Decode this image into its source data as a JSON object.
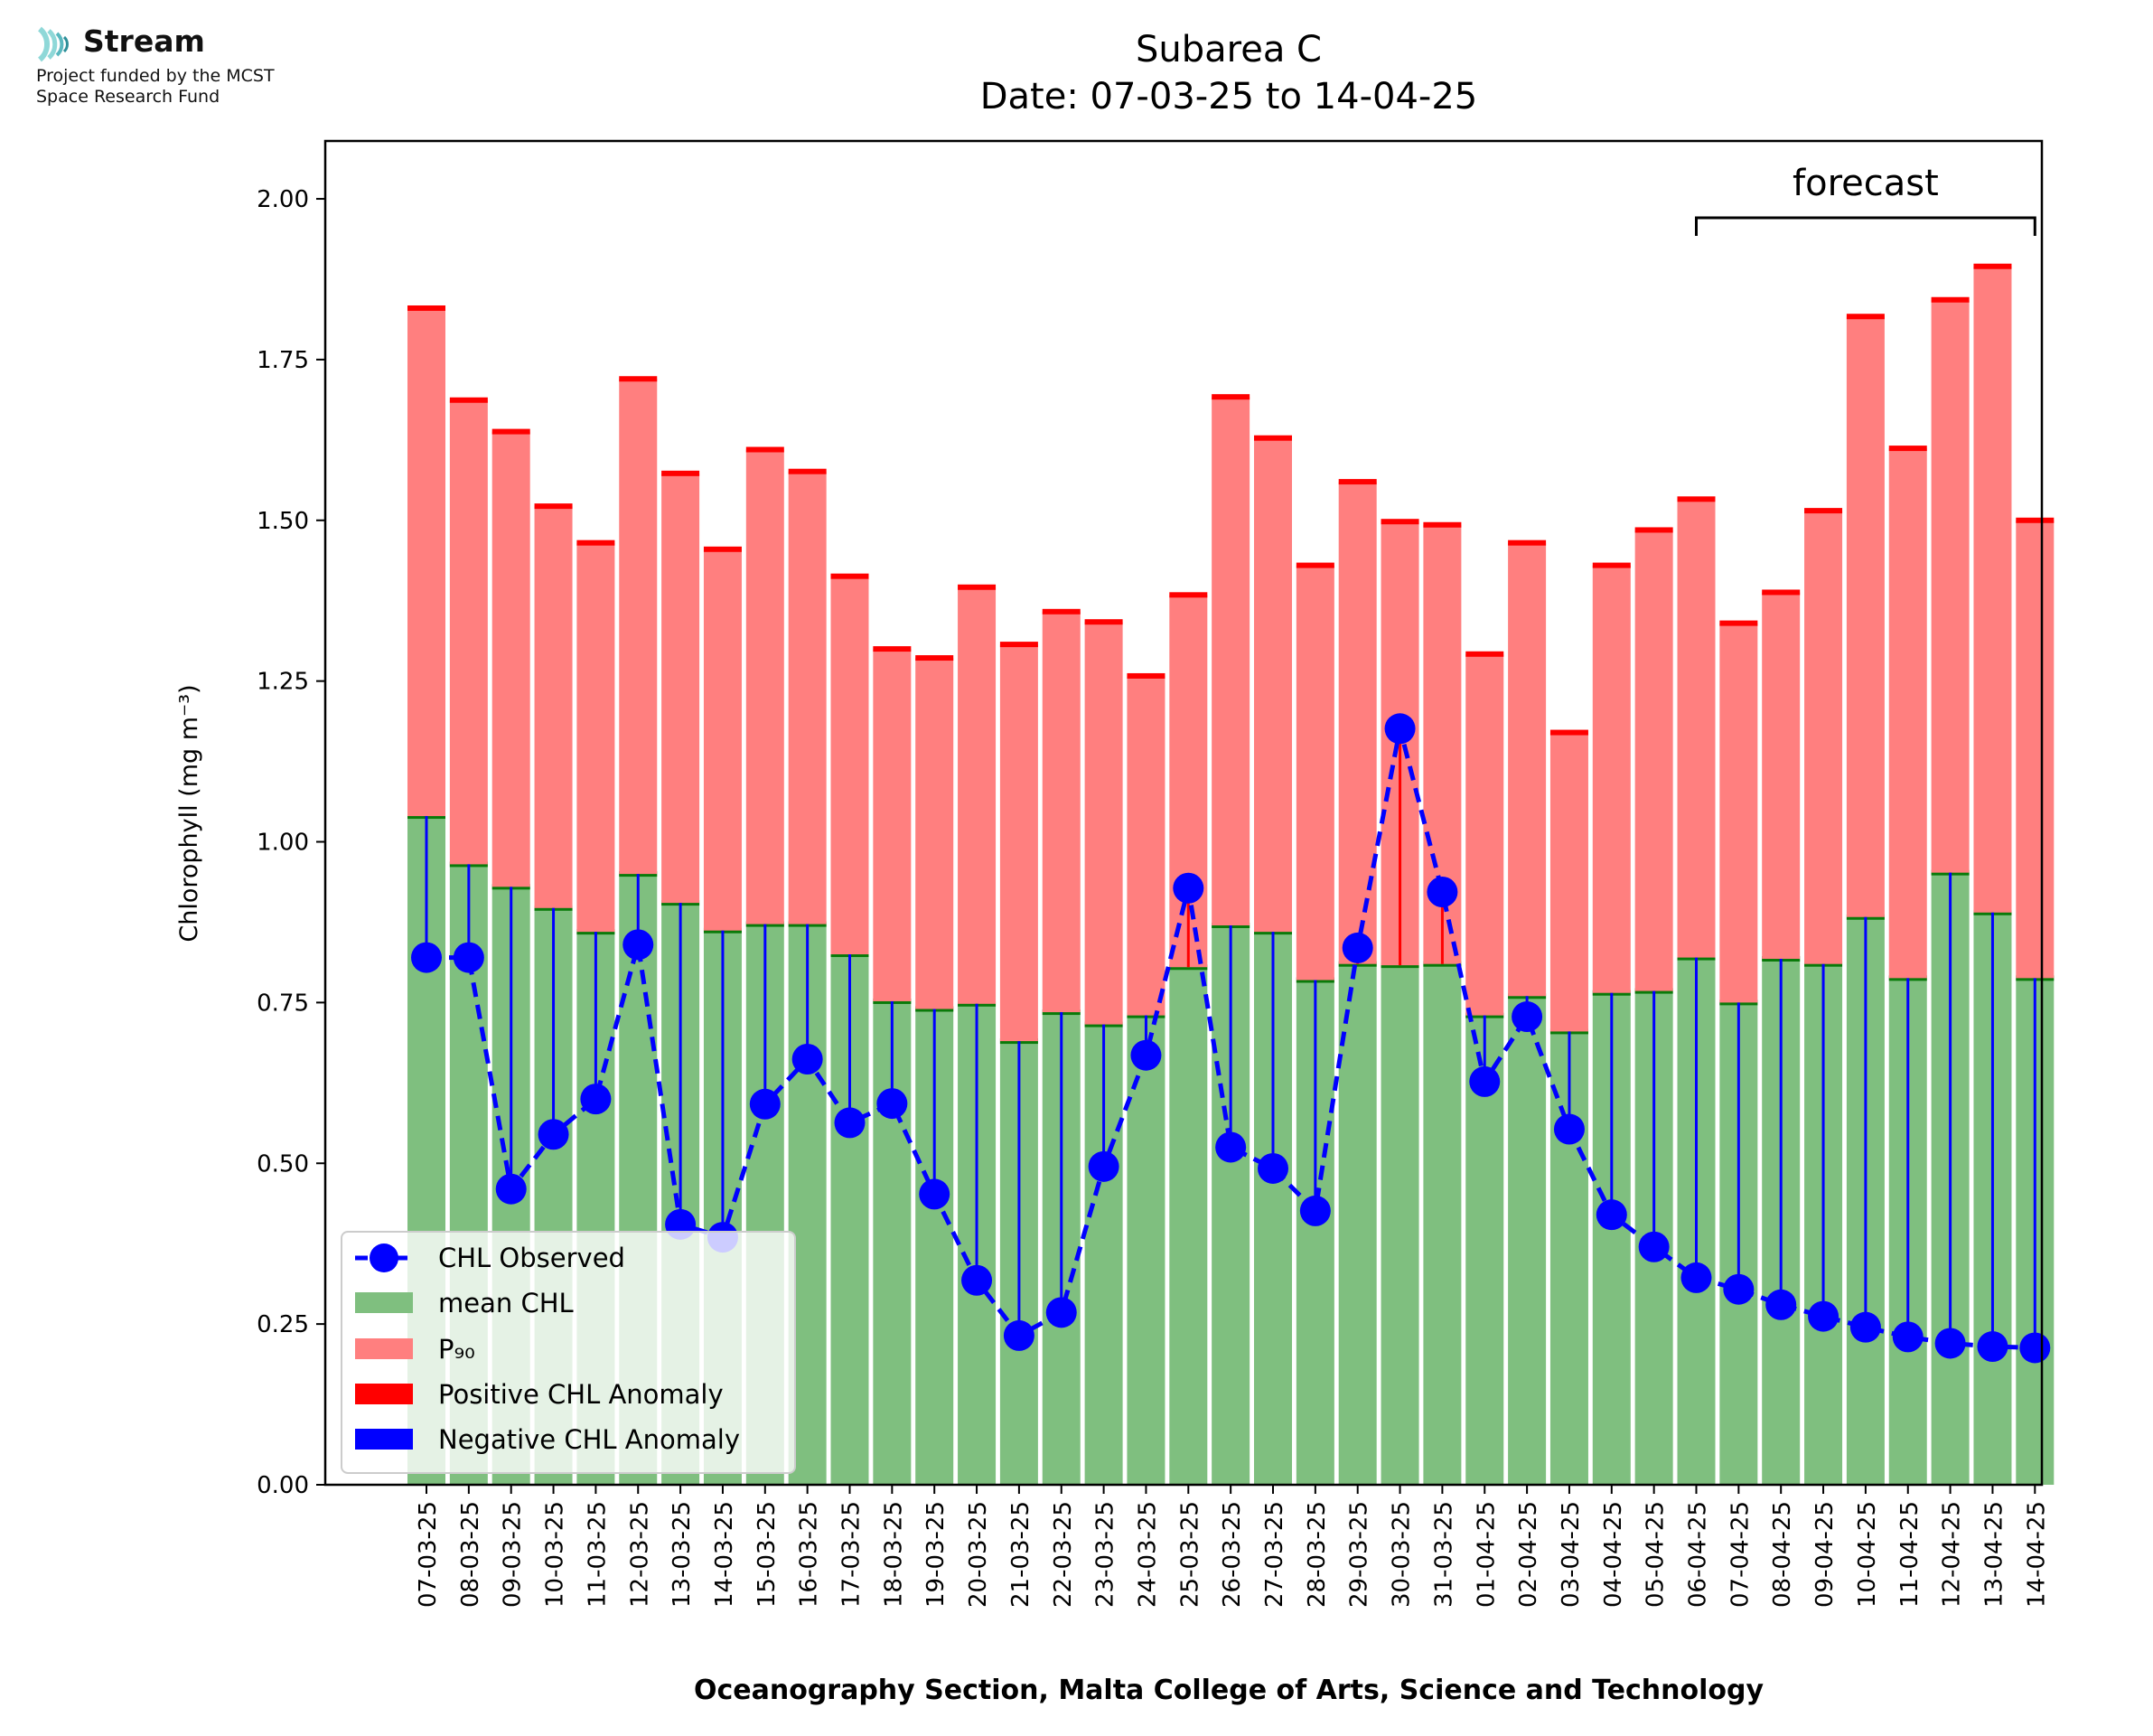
{
  "logo": {
    "name": "Stream",
    "funding_line1": "Project funded by the MCST",
    "funding_line2": "Space Research Fund"
  },
  "colors": {
    "mean": "#7fbf7f",
    "mean_cap": "#0a7a0a",
    "p90": "#ff7f7f",
    "p90_cap": "#ff0000",
    "positive_anomaly": "#ff0000",
    "negative_anomaly": "#0000ff",
    "observed": "#0000ff",
    "logo_accent": "#8fd8d8"
  },
  "chart_data": {
    "type": "bar",
    "title": "Subarea C",
    "subtitle": "Date: 07-03-25 to 14-04-25",
    "xlabel": "Oceanography Section, Malta College of Arts, Science and Technology",
    "ylabel": "Chlorophyll (mg m⁻³)",
    "ylim": [
      0,
      2.09
    ],
    "yticks": [
      0.0,
      0.25,
      0.5,
      0.75,
      1.0,
      1.25,
      1.5,
      1.75,
      2.0
    ],
    "ytick_labels": [
      "0.00",
      "0.25",
      "0.50",
      "0.75",
      "1.00",
      "1.25",
      "1.50",
      "1.75",
      "2.00"
    ],
    "categories": [
      "07-03-25",
      "08-03-25",
      "09-03-25",
      "10-03-25",
      "11-03-25",
      "12-03-25",
      "13-03-25",
      "14-03-25",
      "15-03-25",
      "16-03-25",
      "17-03-25",
      "18-03-25",
      "19-03-25",
      "20-03-25",
      "21-03-25",
      "22-03-25",
      "23-03-25",
      "24-03-25",
      "25-03-25",
      "26-03-25",
      "27-03-25",
      "28-03-25",
      "29-03-25",
      "30-03-25",
      "31-03-25",
      "01-04-25",
      "02-04-25",
      "03-04-25",
      "04-04-25",
      "05-04-25",
      "06-04-25",
      "07-04-25",
      "08-04-25",
      "09-04-25",
      "10-04-25",
      "11-04-25",
      "12-04-25",
      "13-04-25",
      "14-04-25"
    ],
    "series": [
      {
        "name": "mean CHL",
        "kind": "bar",
        "values": [
          1.04,
          0.965,
          0.93,
          0.897,
          0.86,
          0.95,
          0.905,
          0.862,
          0.872,
          0.872,
          0.825,
          0.752,
          0.74,
          0.748,
          0.69,
          0.735,
          0.716,
          0.73,
          0.805,
          0.87,
          0.86,
          0.785,
          0.81,
          0.808,
          0.81,
          0.73,
          0.76,
          0.705,
          0.765,
          0.768,
          0.82,
          0.75,
          0.818,
          0.81,
          0.883,
          0.788,
          0.952,
          0.89,
          0.788
        ]
      },
      {
        "name": "P₉₀",
        "kind": "bar",
        "values": [
          1.83,
          1.687,
          1.638,
          1.522,
          1.465,
          1.72,
          1.573,
          1.455,
          1.61,
          1.576,
          1.413,
          1.3,
          1.286,
          1.396,
          1.307,
          1.358,
          1.342,
          1.258,
          1.384,
          1.692,
          1.628,
          1.43,
          1.56,
          1.498,
          1.493,
          1.292,
          1.465,
          1.17,
          1.43,
          1.485,
          1.533,
          1.34,
          1.388,
          1.515,
          1.817,
          1.612,
          1.843,
          1.895,
          1.5
        ]
      },
      {
        "name": "CHL Observed",
        "kind": "line",
        "values": [
          0.82,
          0.82,
          0.46,
          0.545,
          0.6,
          0.84,
          0.405,
          0.385,
          0.592,
          0.662,
          0.563,
          0.593,
          0.452,
          0.318,
          0.232,
          0.268,
          0.495,
          0.668,
          0.928,
          0.525,
          0.492,
          0.426,
          0.835,
          1.176,
          0.922,
          0.627,
          0.728,
          0.553,
          0.42,
          0.37,
          0.322,
          0.304,
          0.28,
          0.262,
          0.245,
          0.23,
          0.22,
          0.215,
          0.213
        ]
      }
    ],
    "legend": {
      "position": "lower-left",
      "entries": [
        "CHL Observed",
        "mean CHL",
        "P₉₀",
        "Positive CHL Anomaly",
        "Negative CHL Anomaly"
      ]
    },
    "annotation": {
      "text": "forecast",
      "from": "06-04-25",
      "to": "14-04-25"
    },
    "grid": false
  }
}
